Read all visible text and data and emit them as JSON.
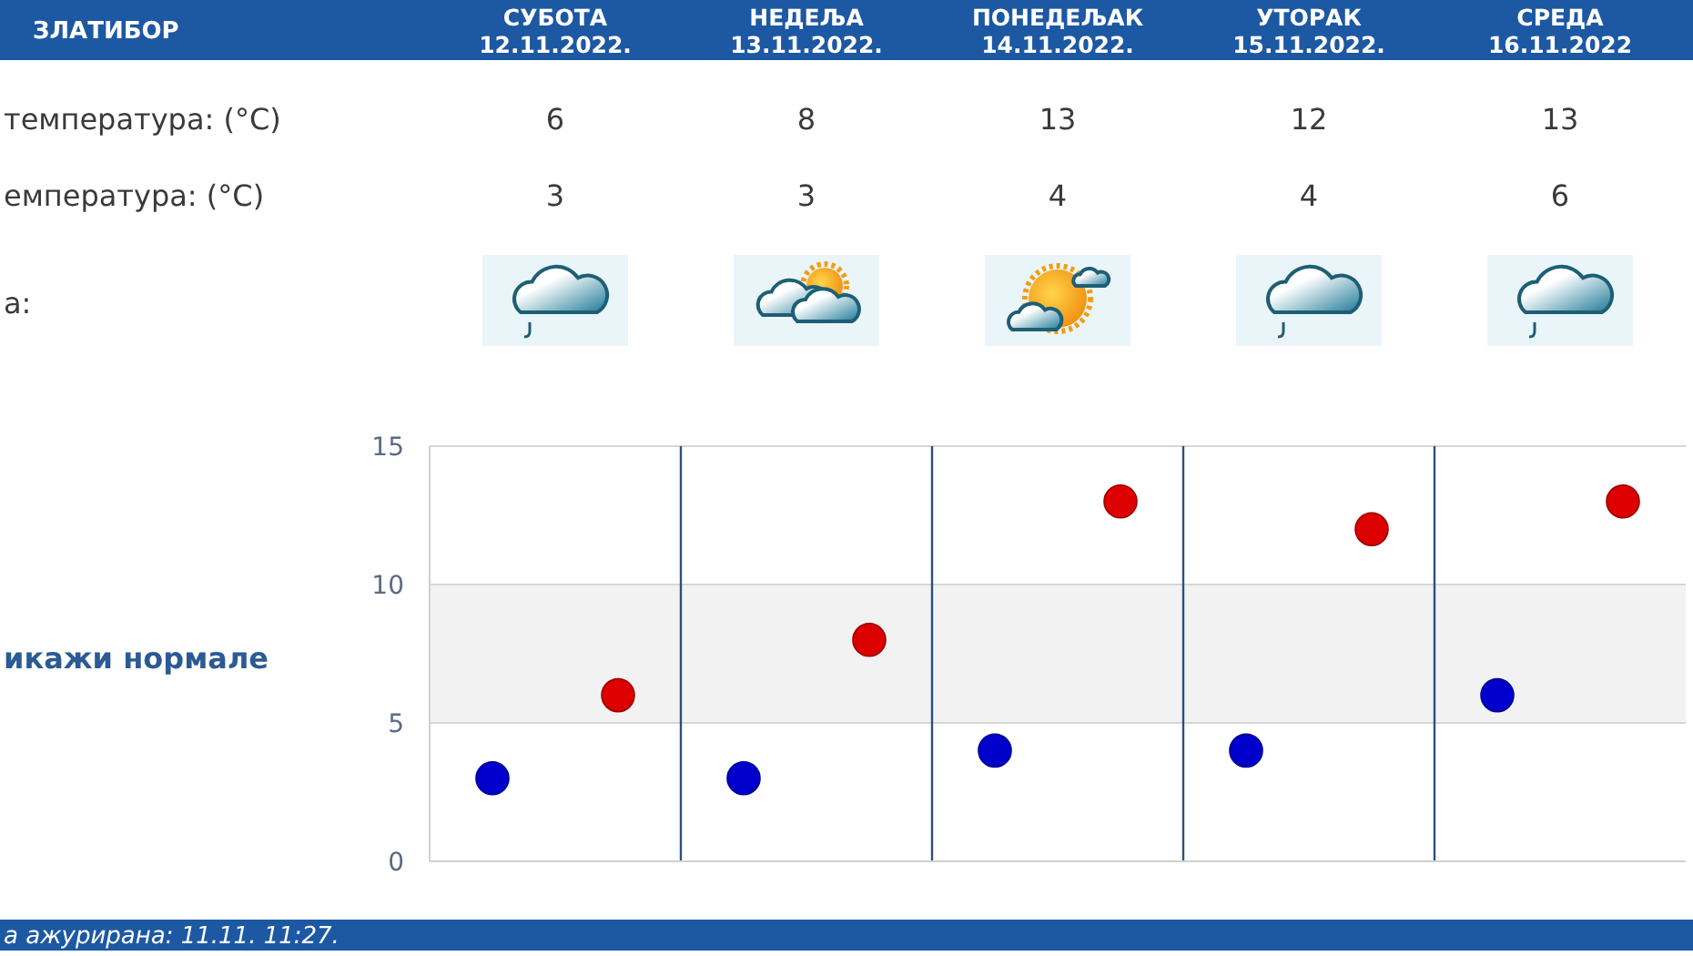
{
  "chart_data": {
    "type": "scatter",
    "title": "ЗЛАТИБОР",
    "categories": [
      null,
      null,
      null,
      null,
      null
    ],
    "series": [
      {
        "color": "#dd0000",
        "values": [
          6,
          8,
          13,
          12,
          13
        ]
      },
      {
        "color": "#0000cc",
        "values": [
          3,
          3,
          4,
          4,
          6
        ]
      }
    ],
    "ylim": [
      0,
      15
    ],
    "yticks": [
      0,
      5,
      10,
      15
    ],
    "grid": true,
    "marker": "circle",
    "data_labels": true,
    "bands": [
      {
        "axis": "y",
        "from": 5,
        "to": 10,
        "color": "#f2f2f2"
      }
    ],
    "annotations": [
      "СУБОТА 12.11.2022.",
      "НЕДЕЉА 13.11.2022.",
      "ПОНЕДЕЉАК 14.11.2022.",
      "УТОРАК 15.11.2022.",
      "СРЕДА 16.11.2022",
      "температура: (°C)",
      "емпература: (°C)",
      "а:",
      "икажи нормале",
      "а ажурирана: 11.11. 11:27."
    ]
  }
}
